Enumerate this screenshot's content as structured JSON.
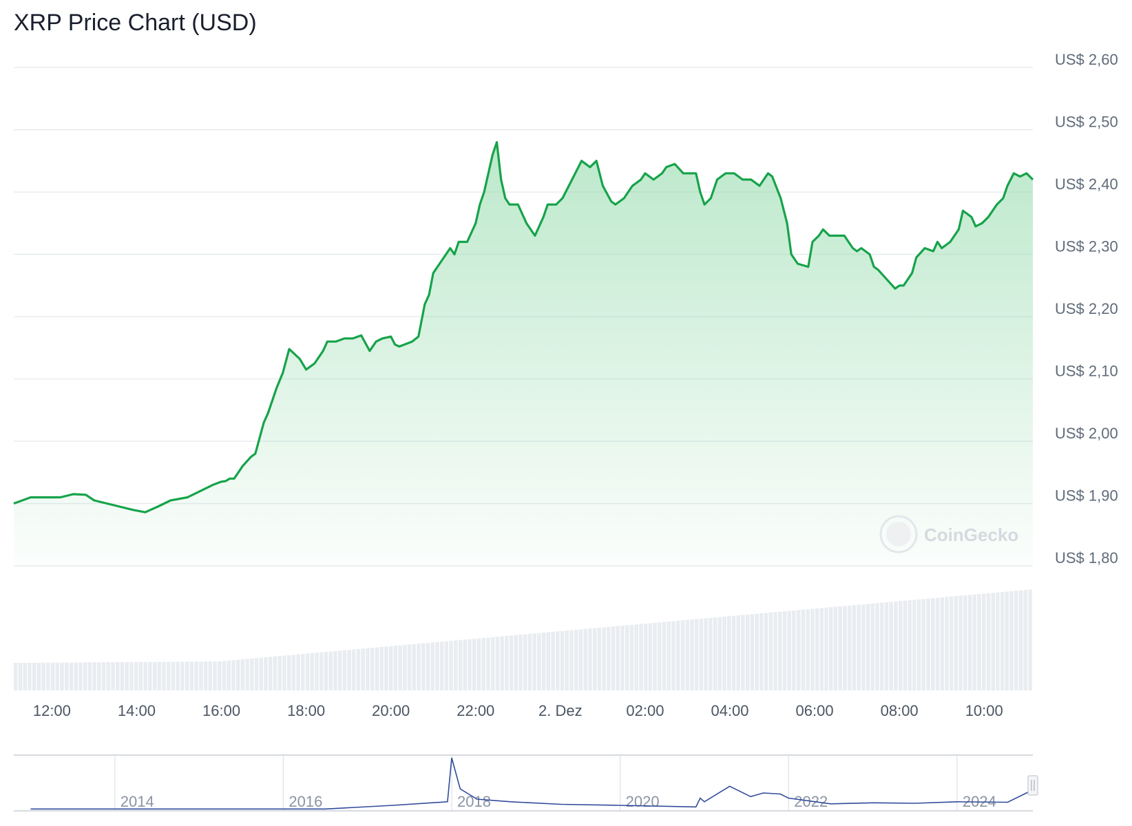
{
  "title": "XRP Price Chart (USD)",
  "watermark": "CoinGecko",
  "colors": {
    "line": "#16a34a",
    "area_top": "#8fd9a8",
    "grid": "#e8ebef",
    "volume": "#e9ecf0",
    "navigator_line": "#2f4a9a"
  },
  "chart_data": {
    "type": "area",
    "title": "XRP Price Chart (USD)",
    "xlabel": "",
    "ylabel": "",
    "ylim": [
      1.8,
      2.6
    ],
    "grid": true,
    "yticks": [
      2.6,
      2.5,
      2.4,
      2.3,
      2.2,
      2.1,
      2.0,
      1.9,
      1.8
    ],
    "ytick_labels": [
      "US$ 2,60",
      "US$ 2,50",
      "US$ 2,40",
      "US$ 2,30",
      "US$ 2,20",
      "US$ 2,10",
      "US$ 2,00",
      "US$ 1,90",
      "US$ 1,80"
    ],
    "xlim": [
      11.1,
      35.15
    ],
    "xticks": [
      12,
      14,
      16,
      18,
      20,
      22,
      24,
      26,
      28,
      30,
      32,
      34
    ],
    "xtick_labels": [
      "12:00",
      "14:00",
      "16:00",
      "18:00",
      "20:00",
      "22:00",
      "2. Dez",
      "02:00",
      "04:00",
      "06:00",
      "08:00",
      "10:00"
    ],
    "series": [
      {
        "x": [
          11.1,
          11.5,
          11.8,
          12.2,
          12.5,
          12.8,
          13.0,
          13.3,
          13.6,
          13.9,
          14.2,
          14.5,
          14.8,
          15.2,
          15.5,
          15.8,
          16.0,
          16.1,
          16.2,
          16.3,
          16.35,
          16.5,
          16.7,
          16.8,
          17.0,
          17.1,
          17.2,
          17.3,
          17.45,
          17.6,
          17.85,
          18.0,
          18.2,
          18.4,
          18.5,
          18.7,
          18.9,
          19.1,
          19.3,
          19.5,
          19.65,
          19.8,
          20.0,
          20.1,
          20.2,
          20.5,
          20.65,
          20.8,
          20.9,
          21.0,
          21.2,
          21.4,
          21.5,
          21.6,
          21.8,
          22.0,
          22.1,
          22.2,
          22.4,
          22.5,
          22.6,
          22.7,
          22.8,
          23.0,
          23.2,
          23.4,
          23.6,
          23.7,
          23.9,
          24.05,
          24.2,
          24.35,
          24.5,
          24.7,
          24.85,
          25.0,
          25.2,
          25.3,
          25.5,
          25.7,
          25.9,
          26.0,
          26.2,
          26.4,
          26.5,
          26.7,
          26.9,
          27.0,
          27.2,
          27.3,
          27.4,
          27.55,
          27.7,
          27.9,
          28.1,
          28.3,
          28.5,
          28.7,
          28.9,
          29.0,
          29.2,
          29.35,
          29.45,
          29.6,
          29.85,
          29.95,
          30.1,
          30.2,
          30.35,
          30.5,
          30.7,
          30.9,
          31.0,
          31.1,
          31.3,
          31.4,
          31.5,
          31.7,
          31.9,
          32.0,
          32.1,
          32.3,
          32.4,
          32.6,
          32.8,
          32.9,
          33.0,
          33.2,
          33.4,
          33.5,
          33.7,
          33.8,
          33.95,
          34.1,
          34.3,
          34.45,
          34.55,
          34.7,
          34.85,
          35.0,
          35.15
        ],
        "y": [
          1.9,
          1.91,
          1.91,
          1.91,
          1.915,
          1.914,
          1.905,
          1.9,
          1.895,
          1.89,
          1.886,
          1.895,
          1.905,
          1.91,
          1.92,
          1.93,
          1.935,
          1.936,
          1.94,
          1.94,
          1.945,
          1.96,
          1.975,
          1.98,
          2.03,
          2.045,
          2.065,
          2.085,
          2.11,
          2.148,
          2.132,
          2.115,
          2.125,
          2.145,
          2.16,
          2.16,
          2.165,
          2.165,
          2.17,
          2.145,
          2.16,
          2.165,
          2.168,
          2.155,
          2.152,
          2.16,
          2.168,
          2.22,
          2.235,
          2.27,
          2.29,
          2.31,
          2.3,
          2.32,
          2.32,
          2.35,
          2.38,
          2.4,
          2.46,
          2.48,
          2.42,
          2.39,
          2.38,
          2.38,
          2.35,
          2.33,
          2.36,
          2.38,
          2.38,
          2.39,
          2.41,
          2.43,
          2.45,
          2.44,
          2.45,
          2.41,
          2.385,
          2.38,
          2.39,
          2.41,
          2.42,
          2.43,
          2.42,
          2.43,
          2.44,
          2.445,
          2.43,
          2.43,
          2.43,
          2.4,
          2.38,
          2.39,
          2.42,
          2.43,
          2.43,
          2.42,
          2.42,
          2.41,
          2.43,
          2.425,
          2.39,
          2.35,
          2.3,
          2.285,
          2.28,
          2.32,
          2.33,
          2.34,
          2.33,
          2.33,
          2.33,
          2.31,
          2.305,
          2.31,
          2.3,
          2.28,
          2.275,
          2.26,
          2.245,
          2.25,
          2.25,
          2.27,
          2.295,
          2.31,
          2.305,
          2.32,
          2.31,
          2.32,
          2.34,
          2.37,
          2.36,
          2.345,
          2.35,
          2.36,
          2.38,
          2.39,
          2.41,
          2.43,
          2.425,
          2.43,
          2.42
        ]
      }
    ],
    "volume": {
      "description_units": "relative",
      "start": 0.27,
      "end": 0.99
    },
    "navigator": {
      "tick_labels": [
        "2014",
        "2016",
        "2018",
        "2020",
        "2022",
        "2024"
      ],
      "x": [
        2013.0,
        2016.5,
        2017.3,
        2017.95,
        2018.0,
        2018.1,
        2018.3,
        2018.7,
        2019.3,
        2020.0,
        2020.9,
        2020.95,
        2021.0,
        2021.3,
        2021.55,
        2021.7,
        2021.9,
        2022.0,
        2022.5,
        2023.0,
        2023.5,
        2024.0,
        2024.6,
        2024.9
      ],
      "y": [
        0.01,
        0.01,
        0.08,
        0.15,
        1.0,
        0.4,
        0.2,
        0.15,
        0.1,
        0.08,
        0.05,
        0.22,
        0.15,
        0.45,
        0.25,
        0.32,
        0.3,
        0.22,
        0.11,
        0.13,
        0.12,
        0.15,
        0.14,
        0.38
      ]
    }
  }
}
